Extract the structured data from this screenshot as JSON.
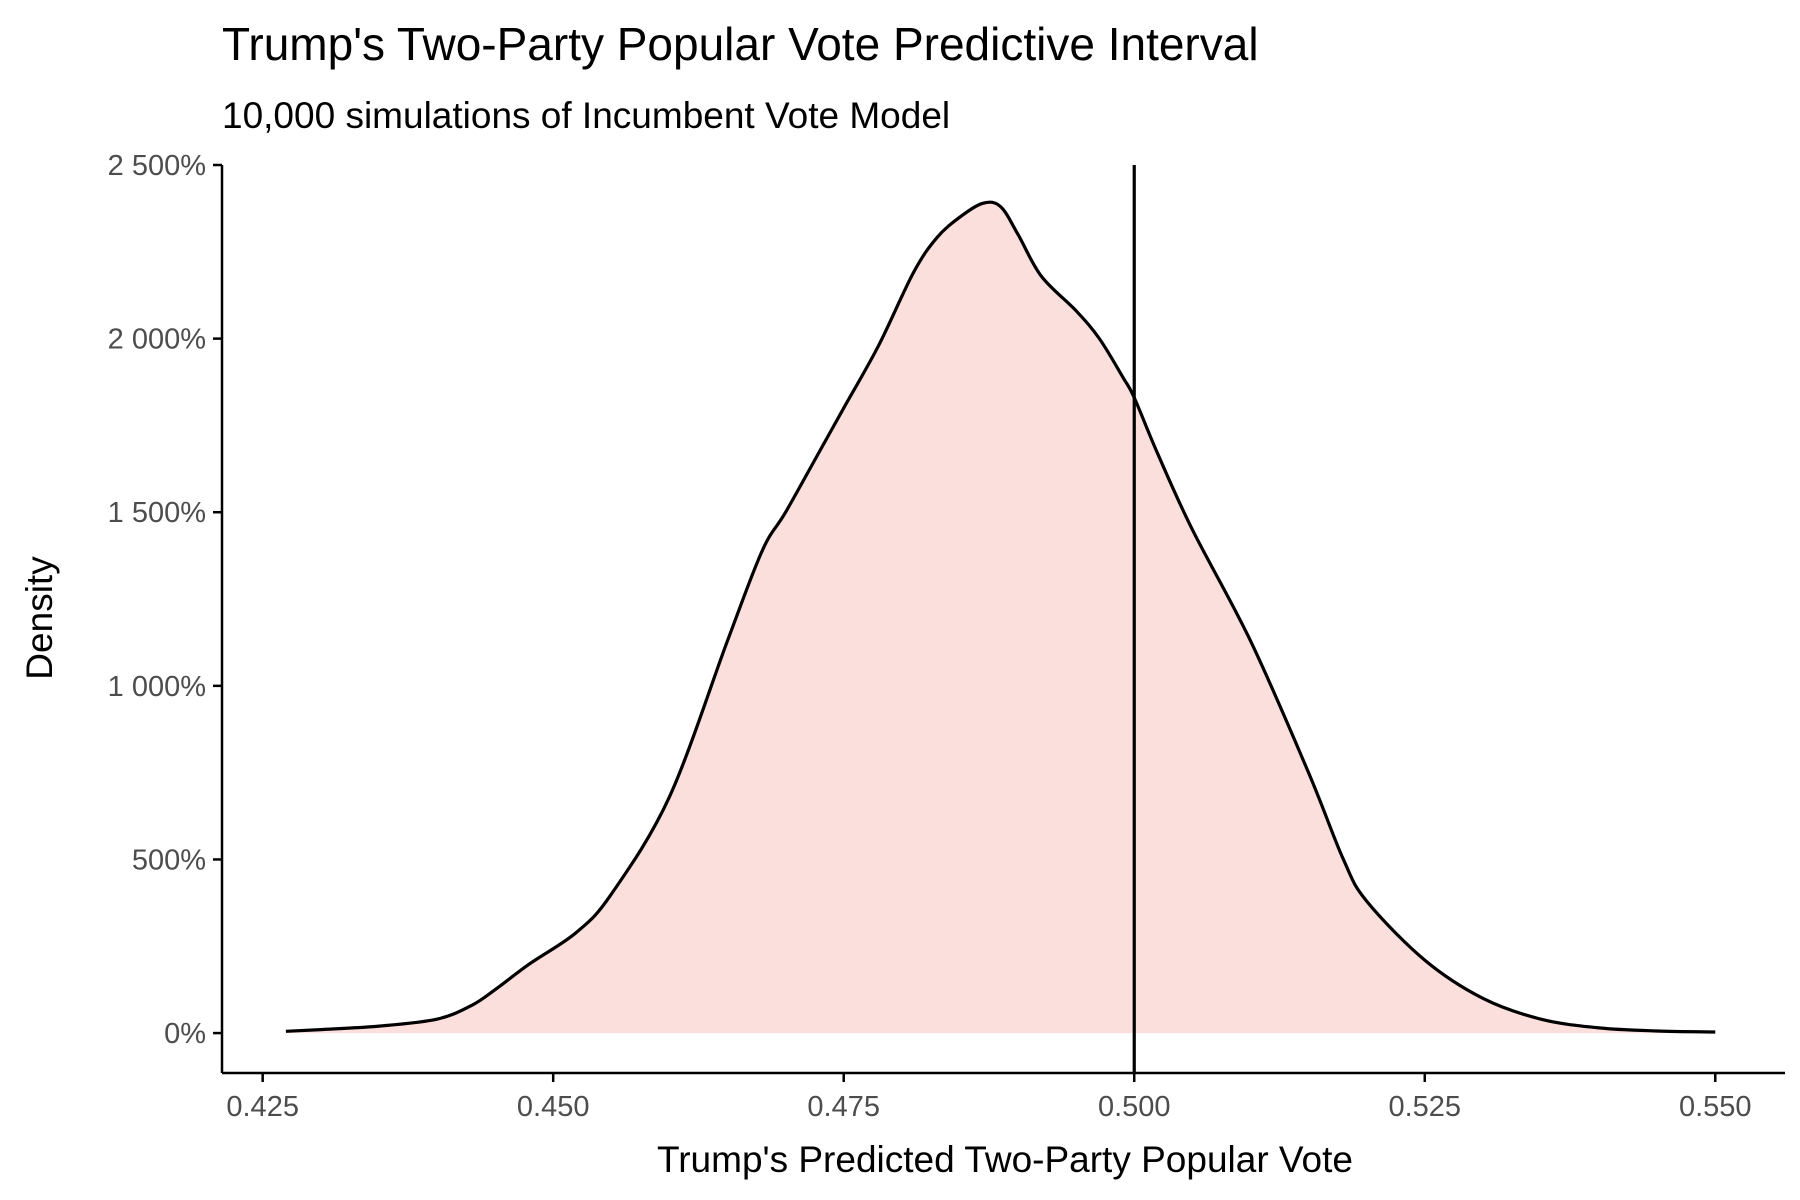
{
  "chart_data": {
    "type": "area",
    "title": "Trump's Two-Party Popular Vote Predictive Interval",
    "subtitle": "10,000 simulations of Incumbent Vote Model",
    "xlabel": "Trump's Predicted Two-Party Popular Vote",
    "ylabel": "Density",
    "xlim": [
      0.4215,
      0.556
    ],
    "ylim": [
      -1.15,
      25.0
    ],
    "x_ticks": [
      0.425,
      0.45,
      0.475,
      0.5,
      0.525,
      0.55
    ],
    "x_tick_labels": [
      "0.425",
      "0.450",
      "0.475",
      "0.500",
      "0.525",
      "0.550"
    ],
    "y_ticks": [
      0,
      5,
      10,
      15,
      20,
      25
    ],
    "y_tick_labels": [
      "0%",
      "500%",
      "1 000%",
      "1 500%",
      "2 000%",
      "2 500%"
    ],
    "vline_x": 0.5,
    "fill_color": "#fbdfdc",
    "line_color": "#000000",
    "x": [
      0.427,
      0.43,
      0.435,
      0.44,
      0.443,
      0.445,
      0.448,
      0.452,
      0.455,
      0.46,
      0.465,
      0.468,
      0.47,
      0.473,
      0.475,
      0.478,
      0.481,
      0.483,
      0.485,
      0.487,
      0.4885,
      0.49,
      0.492,
      0.495,
      0.497,
      0.499,
      0.5,
      0.502,
      0.505,
      0.51,
      0.515,
      0.518,
      0.52,
      0.525,
      0.53,
      0.535,
      0.54,
      0.545,
      0.55
    ],
    "y": [
      0.05,
      0.1,
      0.2,
      0.4,
      0.8,
      1.25,
      2.0,
      2.9,
      4.0,
      6.8,
      11.3,
      13.9,
      15.0,
      16.8,
      18.0,
      19.8,
      21.9,
      22.9,
      23.5,
      23.9,
      23.8,
      23.0,
      21.8,
      20.8,
      20.0,
      18.9,
      18.3,
      16.7,
      14.5,
      11.3,
      7.5,
      5.0,
      3.8,
      2.1,
      1.0,
      0.4,
      0.15,
      0.06,
      0.03
    ]
  }
}
